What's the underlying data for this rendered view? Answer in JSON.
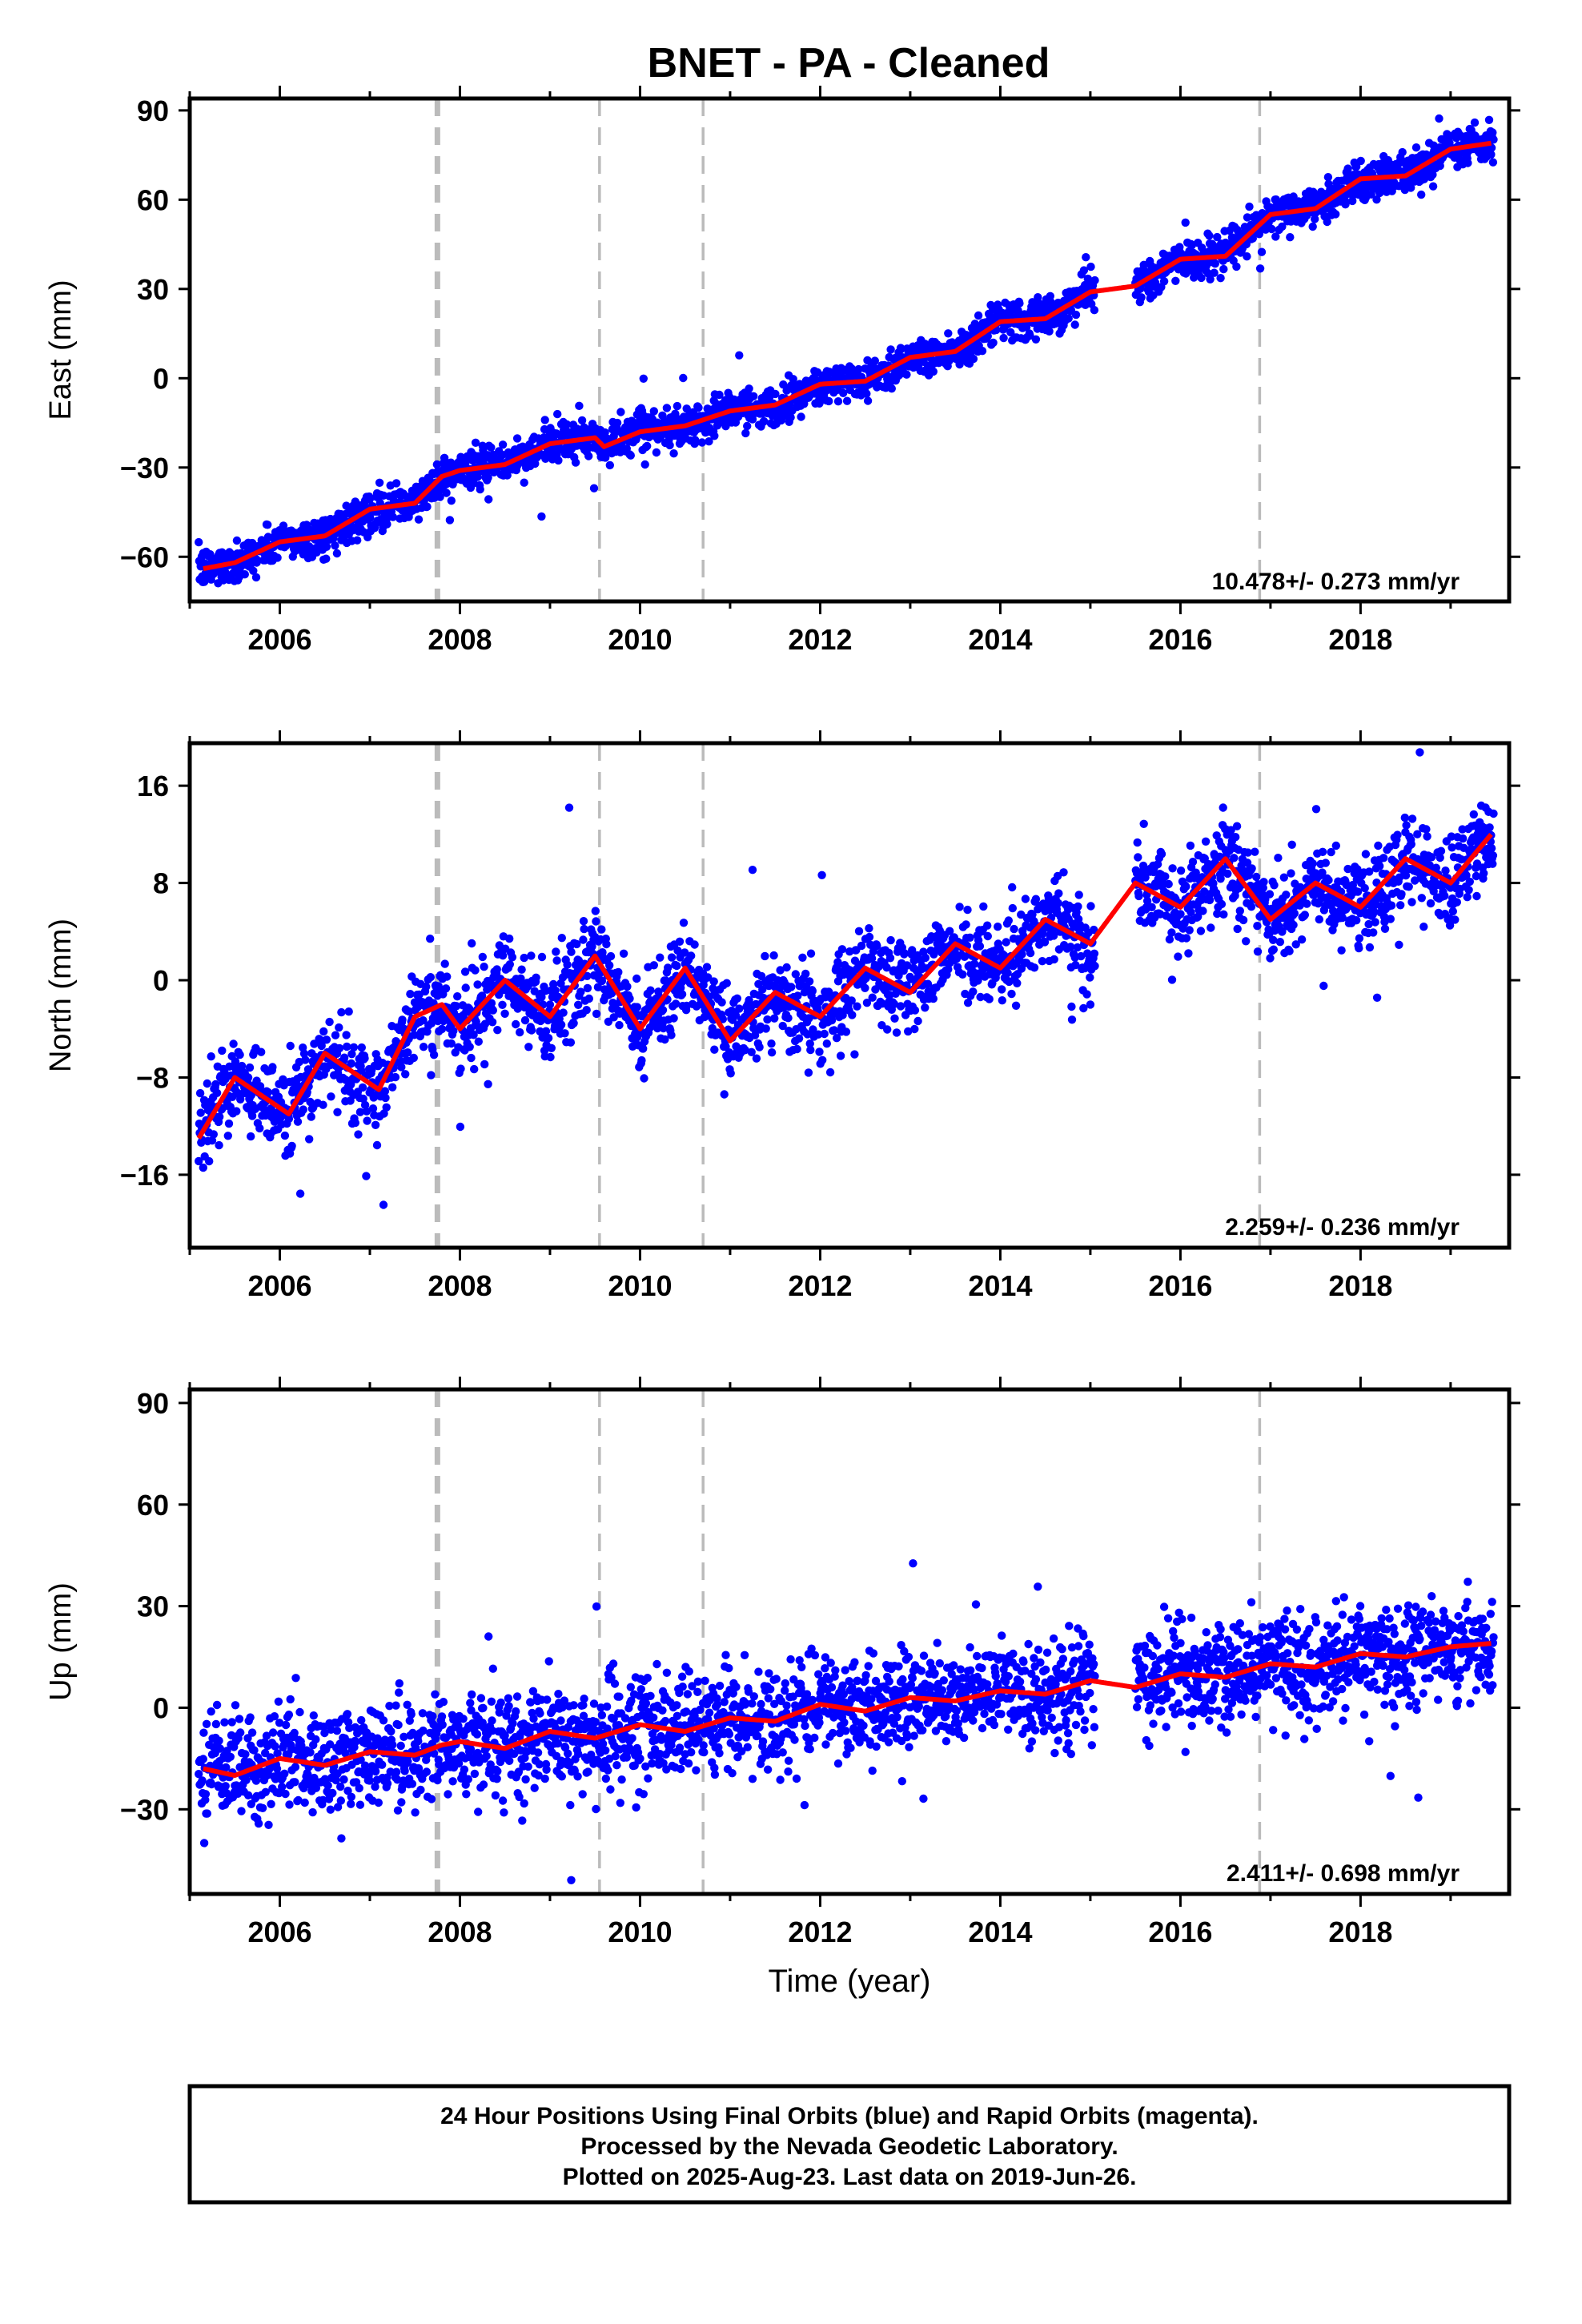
{
  "title": "BNET  - PA - Cleaned",
  "colors": {
    "final_orbits": "#0000ff",
    "model_fit": "#ff0000",
    "offset_lines": "#bbbbbb",
    "frame": "#000000"
  },
  "footer": {
    "line1": "24 Hour Positions Using Final Orbits (blue) and Rapid Orbits (magenta).",
    "line2": "Processed by the Nevada Geodetic Laboratory.",
    "line3": "Plotted on 2025-Aug-23. Last data on 2019-Jun-26."
  },
  "chart_data": [
    {
      "type": "scatter",
      "ylabel": "East (mm)",
      "xlabel": "",
      "xlim": [
        2005.0,
        2019.65
      ],
      "ylim": [
        -75,
        94
      ],
      "yticks": [
        -60,
        -30,
        0,
        30,
        60,
        90
      ],
      "xticks": [
        2006,
        2008,
        2010,
        2012,
        2014,
        2016,
        2018
      ],
      "rate_label": "10.478+/- 0.273 mm/yr",
      "offset_lines": [
        2007.75,
        2009.55,
        2010.7,
        2016.88
      ],
      "trend": {
        "slope": 10.478,
        "anchor_x": 2011.5,
        "anchor_y": -11,
        "seasonal_amp": 2.5,
        "data_gap": [
          2015.05,
          2015.5
        ]
      },
      "scatter_sd": 3.2,
      "series": [
        {
          "name": "",
          "x": [
            2005.15,
            2005.5,
            2006.0,
            2006.5,
            2007.0,
            2007.5,
            2007.8,
            2008.0,
            2008.5,
            2009.0,
            2009.5,
            2009.6,
            2010.0,
            2010.5,
            2011.0,
            2011.5,
            2012.0,
            2012.5,
            2013.0,
            2013.5,
            2014.0,
            2014.5,
            2015.0,
            2015.5,
            2016.0,
            2016.5,
            2017.0,
            2017.5,
            2018.0,
            2018.5,
            2019.0,
            2019.45
          ],
          "y": [
            -64,
            -62,
            -55,
            -53,
            -44,
            -42,
            -33,
            -31,
            -29,
            -22,
            -20,
            -23,
            -18,
            -16,
            -11,
            -9,
            -2,
            -1,
            7,
            9,
            19,
            20,
            29,
            31,
            40,
            41,
            55,
            57,
            67,
            68,
            77,
            79
          ]
        }
      ]
    },
    {
      "type": "scatter",
      "ylabel": "North (mm)",
      "xlabel": "",
      "xlim": [
        2005.0,
        2019.65
      ],
      "ylim": [
        -22,
        19.5
      ],
      "yticks": [
        -16,
        -8,
        0,
        8,
        16
      ],
      "xticks": [
        2006,
        2008,
        2010,
        2012,
        2014,
        2016,
        2018
      ],
      "rate_label": "2.259+/- 0.236 mm/yr",
      "offset_lines": [
        2007.75,
        2009.55,
        2010.7,
        2016.88
      ],
      "trend": {
        "slope": 2.259,
        "anchor_x": 2011.5,
        "anchor_y": -2,
        "seasonal_amp": 2.8,
        "data_gap": [
          2015.05,
          2015.5
        ]
      },
      "scatter_sd": 1.8,
      "series": [
        {
          "name": "",
          "x": [
            2005.1,
            2005.5,
            2006.1,
            2006.5,
            2007.1,
            2007.5,
            2007.8,
            2008.0,
            2008.5,
            2009.0,
            2009.5,
            2010.0,
            2010.5,
            2011.0,
            2011.5,
            2012.0,
            2012.5,
            2013.0,
            2013.5,
            2014.0,
            2014.5,
            2015.0,
            2015.5,
            2016.0,
            2016.5,
            2017.0,
            2017.5,
            2018.0,
            2018.5,
            2019.0,
            2019.45
          ],
          "y": [
            -13,
            -8,
            -11,
            -6,
            -9,
            -3,
            -2,
            -4,
            0,
            -3,
            2,
            -4,
            1,
            -5,
            -1,
            -3,
            1,
            -1,
            3,
            1,
            5,
            3,
            8,
            6,
            10,
            5,
            8,
            6,
            10,
            8,
            12
          ]
        }
      ]
    },
    {
      "type": "scatter",
      "ylabel": "Up (mm)",
      "xlabel": "Time (year)",
      "xlim": [
        2005.0,
        2019.65
      ],
      "ylim": [
        -55,
        94
      ],
      "yticks": [
        -30,
        0,
        30,
        60,
        90
      ],
      "xticks": [
        2006,
        2008,
        2010,
        2012,
        2014,
        2016,
        2018
      ],
      "rate_label": "2.411+/- 0.698 mm/yr",
      "offset_lines": [
        2007.75,
        2009.55,
        2010.7,
        2016.88
      ],
      "trend": {
        "slope": 2.411,
        "anchor_x": 2011.5,
        "anchor_y": -3,
        "seasonal_amp": 2.5,
        "data_gap": [
          2015.05,
          2015.5
        ]
      },
      "scatter_sd": 7.5,
      "series": [
        {
          "name": "",
          "x": [
            2005.15,
            2005.5,
            2006.0,
            2006.5,
            2007.0,
            2007.5,
            2007.8,
            2008.0,
            2008.5,
            2009.0,
            2009.5,
            2010.0,
            2010.5,
            2011.0,
            2011.5,
            2012.0,
            2012.5,
            2013.0,
            2013.5,
            2014.0,
            2014.5,
            2015.0,
            2015.5,
            2016.0,
            2016.5,
            2017.0,
            2017.5,
            2018.0,
            2018.5,
            2019.0,
            2019.45
          ],
          "y": [
            -18,
            -20,
            -15,
            -17,
            -13,
            -14,
            -11,
            -10,
            -12,
            -7,
            -9,
            -5,
            -7,
            -3,
            -4,
            1,
            -1,
            3,
            2,
            5,
            4,
            8,
            6,
            10,
            9,
            13,
            12,
            16,
            15,
            18,
            19
          ]
        }
      ]
    }
  ]
}
